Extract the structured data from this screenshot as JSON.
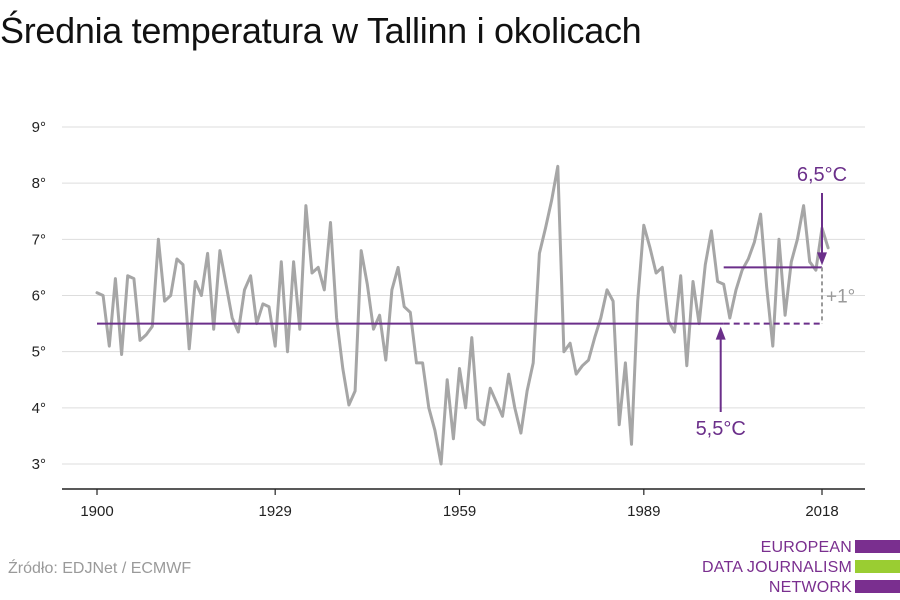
{
  "title": "Średnia temperatura w Tallinn i okolicach",
  "source": "Źródło: EDJNet / ECMWF",
  "logo": {
    "lines": [
      "EUROPEAN",
      "DATA JOURNALISM",
      "NETWORK"
    ],
    "colors": [
      "#7a2f8f",
      "#9acd32",
      "#7a2f8f"
    ]
  },
  "colors": {
    "series": "#a6a6a6",
    "reference": "#6b2f8a",
    "grid": "#dddddd",
    "axis": "#222222"
  },
  "chart_data": {
    "type": "line",
    "title": "Średnia temperatura w Tallinn i okolicach",
    "xlabel": "",
    "ylabel": "",
    "xlim": [
      1900,
      2018
    ],
    "ylim": [
      3,
      9
    ],
    "x_ticks": [
      1900,
      1929,
      1959,
      1989,
      2018
    ],
    "y_ticks": [
      {
        "value": 3,
        "label": "3°"
      },
      {
        "value": 4,
        "label": "4°"
      },
      {
        "value": 5,
        "label": "5°"
      },
      {
        "value": 6,
        "label": "6°"
      },
      {
        "value": 7,
        "label": "7°"
      },
      {
        "value": 8,
        "label": "8°"
      },
      {
        "value": 9,
        "label": "9°"
      }
    ],
    "grid": true,
    "series": [
      {
        "x": [
          1900,
          1901,
          1902,
          1903,
          1904,
          1905,
          1906,
          1907,
          1908,
          1909,
          1910,
          1911,
          1912,
          1913,
          1914,
          1915,
          1916,
          1917,
          1918,
          1919,
          1920,
          1921,
          1922,
          1923,
          1924,
          1925,
          1926,
          1927,
          1928,
          1929,
          1930,
          1931,
          1932,
          1933,
          1934,
          1935,
          1936,
          1937,
          1938,
          1939,
          1940,
          1941,
          1942,
          1943,
          1944,
          1945,
          1946,
          1947,
          1948,
          1949,
          1950,
          1951,
          1952,
          1953,
          1954,
          1955,
          1956,
          1957,
          1958,
          1959,
          1960,
          1961,
          1962,
          1963,
          1964,
          1965,
          1966,
          1967,
          1968,
          1969,
          1970,
          1971,
          1972,
          1973,
          1974,
          1975,
          1976,
          1977,
          1978,
          1979,
          1980,
          1981,
          1982,
          1983,
          1984,
          1985,
          1986,
          1987,
          1988,
          1989,
          1990,
          1991,
          1992,
          1993,
          1994,
          1995,
          1996,
          1997,
          1998,
          1999,
          2000,
          2001,
          2002,
          2003,
          2004,
          2005,
          2006,
          2007,
          2008,
          2009,
          2010,
          2011,
          2012,
          2013,
          2014,
          2015,
          2016,
          2017,
          2018,
          2019
        ],
        "y": [
          6.05,
          6.0,
          5.1,
          6.3,
          4.95,
          6.35,
          6.3,
          5.2,
          5.3,
          5.45,
          7.0,
          5.9,
          6.0,
          6.65,
          6.55,
          5.05,
          6.25,
          6.0,
          6.75,
          5.4,
          6.8,
          6.2,
          5.6,
          5.35,
          6.1,
          6.35,
          5.5,
          5.85,
          5.8,
          5.1,
          6.6,
          5.0,
          6.6,
          5.4,
          7.6,
          6.4,
          6.5,
          6.1,
          7.3,
          5.6,
          4.7,
          4.05,
          4.3,
          6.8,
          6.2,
          5.4,
          5.65,
          4.85,
          6.1,
          6.5,
          5.8,
          5.7,
          4.8,
          4.8,
          4.0,
          3.6,
          3.0,
          4.5,
          3.45,
          4.7,
          4.0,
          5.25,
          3.8,
          3.7,
          4.35,
          4.1,
          3.85,
          4.6,
          4.0,
          3.55,
          4.3,
          4.8,
          6.75,
          7.2,
          7.7,
          8.3,
          5.0,
          5.15,
          4.6,
          4.75,
          4.85,
          5.25,
          5.6,
          6.1,
          5.9,
          3.7,
          4.8,
          3.35,
          5.9,
          7.25,
          6.85,
          6.4,
          6.5,
          5.55,
          5.35,
          6.35,
          4.75,
          6.25,
          5.5,
          6.55,
          7.15,
          6.25,
          6.2,
          5.6,
          6.1,
          6.45,
          6.65,
          6.95,
          7.45,
          6.15,
          5.1,
          7.0,
          5.65,
          6.6,
          7.0,
          7.6,
          6.6,
          6.45,
          7.2,
          6.85
        ]
      }
    ],
    "reference_lines": [
      {
        "label": "5,5°C",
        "value": 5.5,
        "from": 1900,
        "to": 2018,
        "dashed_from": 2002
      },
      {
        "label": "6,5°C",
        "value": 6.5,
        "from": 2002,
        "to": 2018
      }
    ],
    "annotations": {
      "difference": "+1°"
    }
  }
}
